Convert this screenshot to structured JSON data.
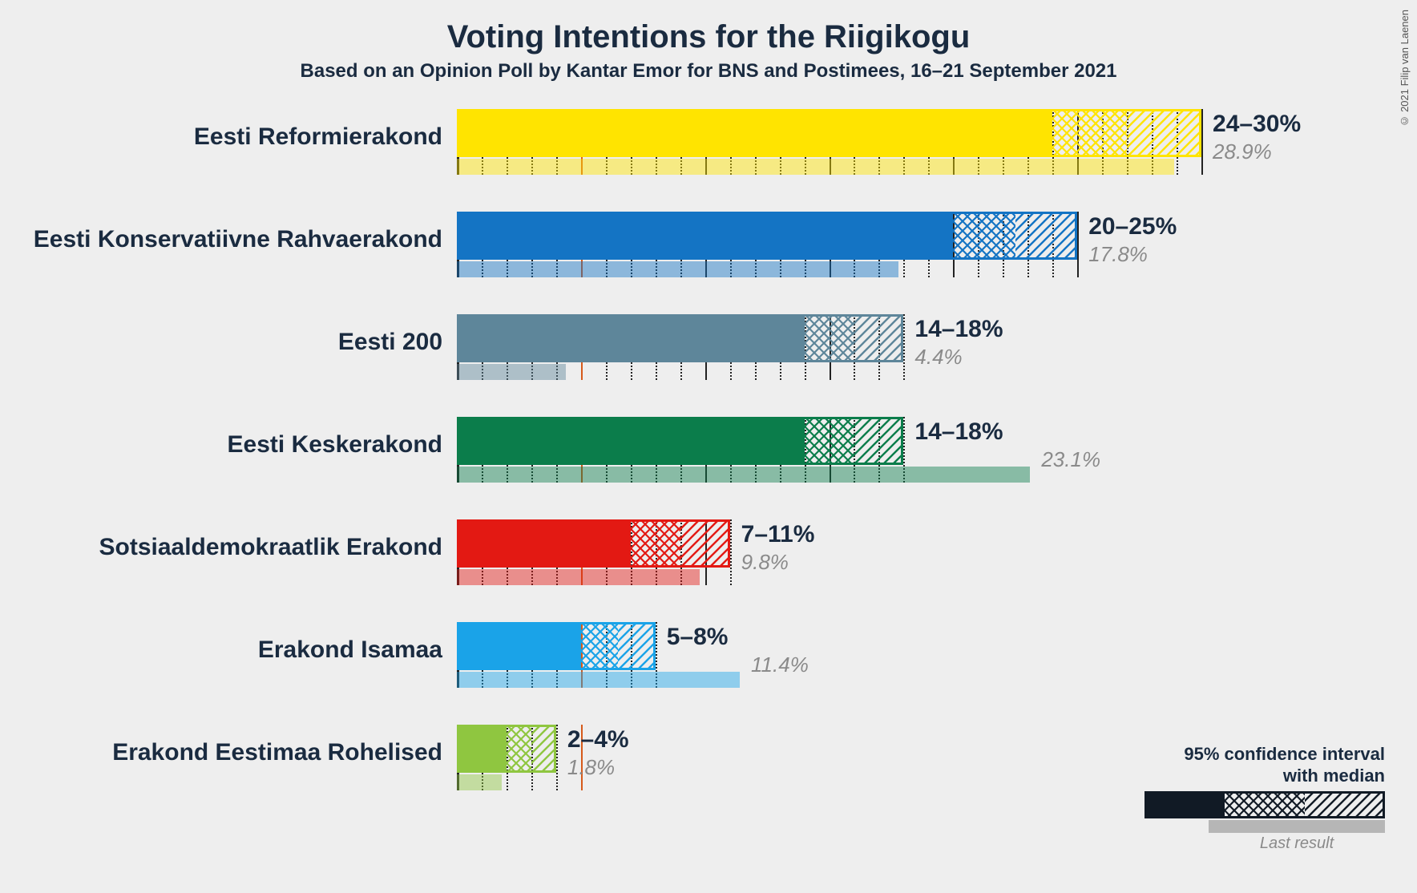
{
  "title": "Voting Intentions for the Riigikogu",
  "subtitle": "Based on an Opinion Poll by Kantar Emor for BNS and Postimees, 16–21 September 2021",
  "copyright": "© 2021 Filip van Laenen",
  "title_fontsize": 40,
  "subtitle_fontsize": 24,
  "background_color": "#eeeeee",
  "text_color": "#1a2b40",
  "muted_color": "#8a8a8a",
  "axis": {
    "min": 0,
    "max": 31,
    "tick_step": 1,
    "major_step": 5,
    "threshold": 5,
    "threshold_color": "#d65a1a",
    "grid_minor_color": "#222222",
    "grid_major_color": "#222222"
  },
  "legend": {
    "line1": "95% confidence interval",
    "line2": "with median",
    "last_label": "Last result",
    "swatch_color": "#111a25"
  },
  "parties": [
    {
      "name": "Eesti Reformierakond",
      "color": "#ffe400",
      "low": 24,
      "median": 27,
      "high": 30,
      "range_label": "24–30%",
      "last": 28.9,
      "last_label": "28.9%"
    },
    {
      "name": "Eesti Konservatiivne Rahvaerakond",
      "color": "#1474c4",
      "low": 20,
      "median": 22.5,
      "high": 25,
      "range_label": "20–25%",
      "last": 17.8,
      "last_label": "17.8%"
    },
    {
      "name": "Eesti 200",
      "color": "#5e869a",
      "low": 14,
      "median": 16,
      "high": 18,
      "range_label": "14–18%",
      "last": 4.4,
      "last_label": "4.4%"
    },
    {
      "name": "Eesti Keskerakond",
      "color": "#0b7d4b",
      "low": 14,
      "median": 16,
      "high": 18,
      "range_label": "14–18%",
      "last": 23.1,
      "last_label": "23.1%"
    },
    {
      "name": "Sotsiaaldemokraatlik Erakond",
      "color": "#e31913",
      "low": 7,
      "median": 9,
      "high": 11,
      "range_label": "7–11%",
      "last": 9.8,
      "last_label": "9.8%"
    },
    {
      "name": "Erakond Isamaa",
      "color": "#1aa3e8",
      "low": 5,
      "median": 6.5,
      "high": 8,
      "range_label": "5–8%",
      "last": 11.4,
      "last_label": "11.4%"
    },
    {
      "name": "Erakond Eestimaa Rohelised",
      "color": "#8fc640",
      "low": 2,
      "median": 3,
      "high": 4,
      "range_label": "2–4%",
      "last": 1.8,
      "last_label": "1.8%"
    }
  ]
}
